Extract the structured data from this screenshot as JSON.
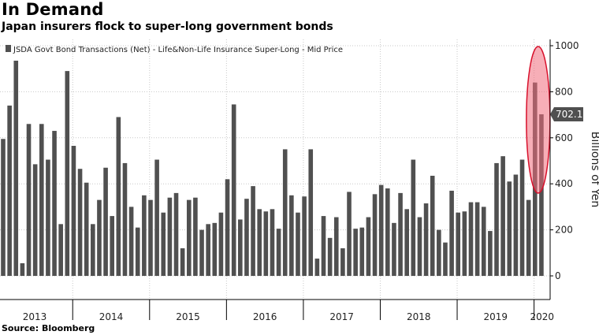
{
  "header": {
    "title": "In Demand",
    "subtitle": "Japan insurers flock to super-long government bonds"
  },
  "footer": {
    "source": "Source: Bloomberg"
  },
  "colors": {
    "bar": "#505050",
    "highlight_fill": "#f06b7b",
    "highlight_stroke": "#d8112c",
    "axis": "#000000",
    "last_badge": "#505050"
  },
  "chart_data": {
    "type": "bar",
    "title": "",
    "legend": "JSDA Govt Bond Transactions (Net) - Life&Non-Life Insurance Super-Long - Mid Price",
    "legend_position": "top-left",
    "ylabel": "Billions of Yen",
    "ylim": [
      -100,
      1000
    ],
    "yticks": [
      "0",
      "200",
      "400",
      "600",
      "800",
      "1000"
    ],
    "ytick_values": [
      0,
      200,
      400,
      600,
      800,
      1000
    ],
    "grid": true,
    "years": [
      "2013",
      "2014",
      "2015",
      "2016",
      "2017",
      "2018",
      "2019",
      "2020"
    ],
    "last_value_label": "702.1",
    "highlight": {
      "shape": "ellipse",
      "covers": "last two months"
    },
    "values": [
      595,
      740,
      935,
      55,
      660,
      485,
      660,
      505,
      630,
      225,
      890,
      565,
      465,
      405,
      225,
      330,
      470,
      260,
      690,
      490,
      300,
      210,
      350,
      330,
      505,
      275,
      340,
      360,
      120,
      330,
      340,
      200,
      225,
      230,
      275,
      420,
      745,
      245,
      335,
      390,
      290,
      280,
      290,
      205,
      550,
      350,
      275,
      345,
      550,
      75,
      260,
      165,
      255,
      120,
      365,
      205,
      210,
      255,
      355,
      395,
      380,
      230,
      360,
      290,
      505,
      255,
      315,
      435,
      200,
      145,
      370,
      275,
      280,
      320,
      320,
      300,
      195,
      490,
      520,
      410,
      440,
      505,
      330,
      840,
      702.1
    ]
  }
}
